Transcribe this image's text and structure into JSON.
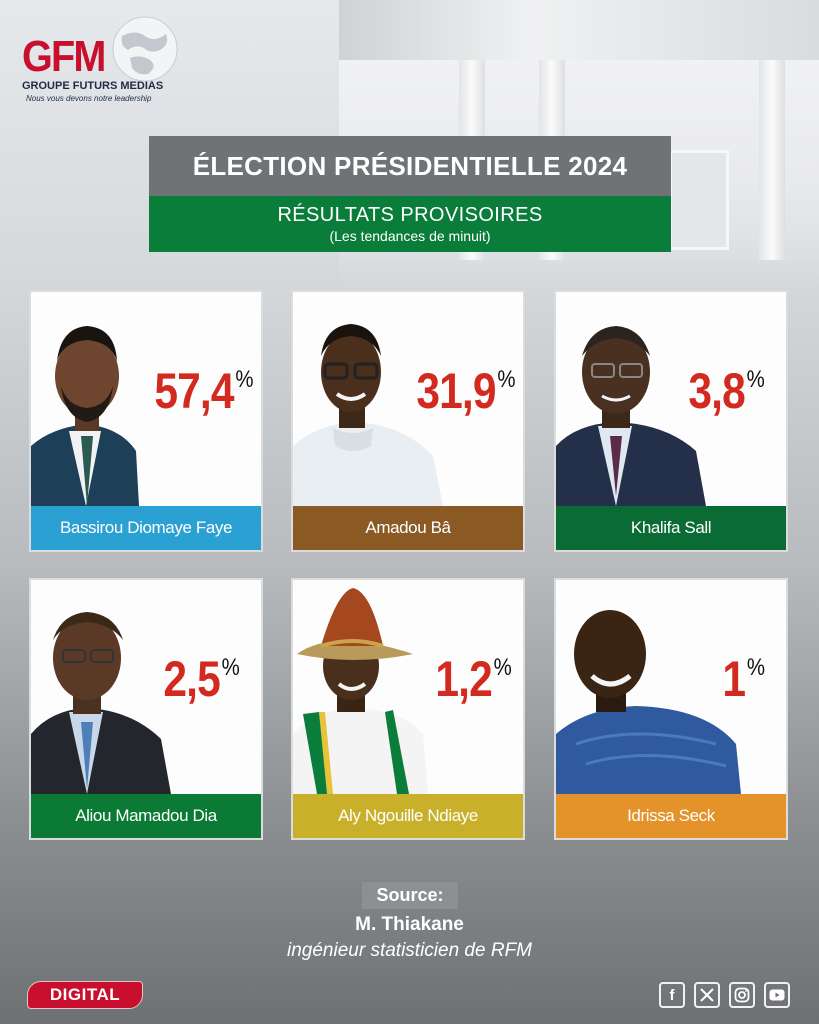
{
  "brand": {
    "logo_text": "GFM",
    "group_name": "GROUPE FUTURS MEDIAS",
    "tagline": "Nous vous devons notre leadership"
  },
  "header": {
    "title": "ÉLECTION PRÉSIDENTIELLE 2024",
    "subtitle": "RÉSULTATS PROVISOIRES",
    "subtitle_note": "(Les tendances de minuit)"
  },
  "candidates": [
    {
      "name": "Bassirou Diomaye Faye",
      "value": "57,4",
      "unit": "%",
      "label_color": "#2ba0d3",
      "percent": 57.4
    },
    {
      "name": "Amadou Bâ",
      "value": "31,9",
      "unit": "%",
      "label_color": "#8b5a24",
      "percent": 31.9
    },
    {
      "name": "Khalifa Sall",
      "value": "3,8",
      "unit": "%",
      "label_color": "#0a6b34",
      "percent": 3.8
    },
    {
      "name": "Aliou Mamadou Dia",
      "value": "2,5",
      "unit": "%",
      "label_color": "#0a7a35",
      "percent": 2.5
    },
    {
      "name": "Aly Ngouille Ndiaye",
      "value": "1,2",
      "unit": "%",
      "label_color": "#c9b02a",
      "percent": 1.2
    },
    {
      "name": "Idrissa Seck",
      "value": "1",
      "unit": "%",
      "label_color": "#e3932a",
      "percent": 1
    }
  ],
  "source": {
    "label": "Source:",
    "name": "M. Thiakane",
    "role": "ingénieur statisticien de RFM"
  },
  "footer": {
    "badge": "DIGITAL",
    "social_icons": [
      "facebook-icon",
      "x-icon",
      "instagram-icon",
      "youtube-icon"
    ]
  },
  "colors": {
    "brand_red": "#c8102e",
    "title_gray": "#707375",
    "subtitle_green": "#0a7d3a",
    "percent_red": "#d22a1f"
  }
}
